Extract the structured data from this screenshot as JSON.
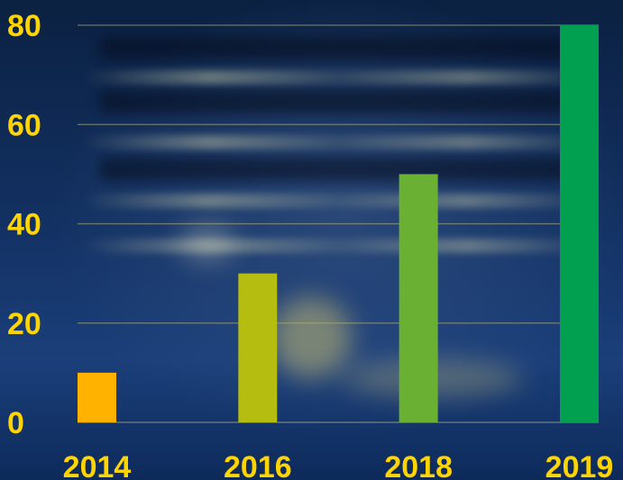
{
  "chart_data": {
    "type": "bar",
    "categories": [
      "2014",
      "2016",
      "2018",
      "2019"
    ],
    "values": [
      10,
      30,
      50,
      80
    ],
    "colors": [
      "#ffb300",
      "#b5bd10",
      "#6ab033",
      "#00a050"
    ],
    "y_ticks": [
      "0",
      "20",
      "40",
      "60",
      "80"
    ],
    "ylim": [
      0,
      80
    ],
    "grid": true,
    "label_color": "#ffd400"
  }
}
